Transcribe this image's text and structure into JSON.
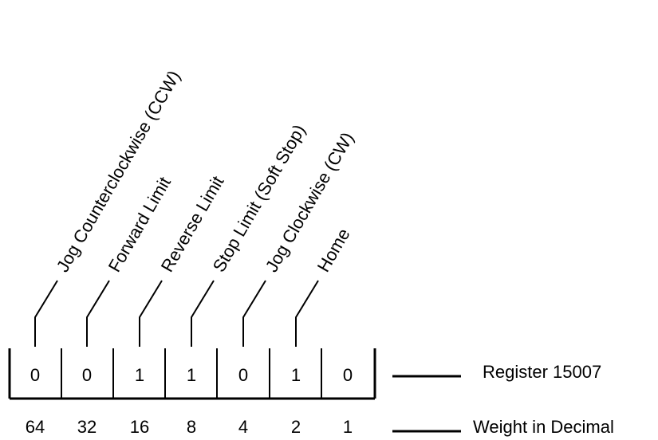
{
  "register": {
    "label": "Register 15007",
    "bits": [
      "0",
      "0",
      "1",
      "1",
      "0",
      "1",
      "0"
    ]
  },
  "weights": {
    "label": "Weight in Decimal",
    "values": [
      "64",
      "32",
      "16",
      "8",
      "4",
      "2",
      "1"
    ]
  },
  "bit_labels": [
    "Jog Counterclockwise (CCW)",
    "Forward Limit",
    "Reverse Limit",
    "Stop Limit (Soft Stop)",
    "Jog Clockwise (CW)",
    "Home"
  ]
}
